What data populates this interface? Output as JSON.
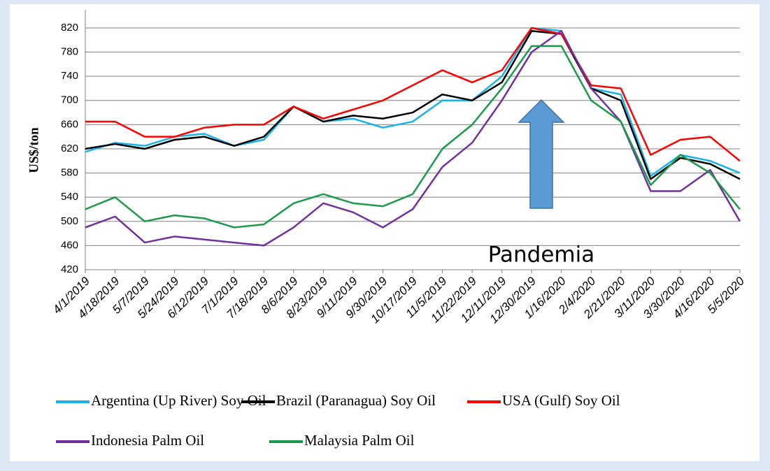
{
  "chart_data": {
    "type": "line",
    "y_label": "US$/ton",
    "annotation": "Pandemia",
    "categories": [
      "4/1/2019",
      "4/18/2019",
      "5/7/2019",
      "5/24/2019",
      "6/12/2019",
      "7/1/2019",
      "7/18/2019",
      "8/6/2019",
      "8/23/2019",
      "9/11/2019",
      "9/30/2019",
      "10/17/2019",
      "11/5/2019",
      "11/22/2019",
      "12/11/2019",
      "12/30/2019",
      "1/16/2020",
      "2/4/2020",
      "2/21/2020",
      "3/11/2020",
      "3/30/2020",
      "4/16/2020",
      "5/5/2020"
    ],
    "series": [
      {
        "name": "Argentina (Up River) Soy Oil",
        "color": "#1ab2ea",
        "values": [
          615,
          630,
          625,
          640,
          645,
          625,
          635,
          690,
          665,
          670,
          655,
          665,
          700,
          700,
          740,
          820,
          815,
          720,
          710,
          575,
          610,
          600,
          580
        ]
      },
      {
        "name": "Brazil (Paranagua) Soy Oil",
        "color": "#000000",
        "values": [
          620,
          628,
          620,
          635,
          640,
          625,
          640,
          690,
          665,
          675,
          670,
          680,
          710,
          700,
          730,
          815,
          810,
          720,
          700,
          570,
          605,
          595,
          570
        ]
      },
      {
        "name": "USA (Gulf) Soy Oil",
        "color": "#ff0000",
        "values": [
          665,
          665,
          640,
          640,
          655,
          660,
          660,
          690,
          670,
          685,
          700,
          725,
          750,
          730,
          750,
          820,
          810,
          725,
          720,
          610,
          635,
          640,
          600
        ]
      },
      {
        "name": "Indonesia Palm Oil",
        "color": "#7030a0",
        "values": [
          490,
          508,
          465,
          475,
          470,
          465,
          460,
          490,
          530,
          515,
          490,
          520,
          590,
          630,
          700,
          780,
          815,
          720,
          665,
          550,
          550,
          585,
          500
        ]
      },
      {
        "name": "Malaysia Palm Oil",
        "color": "#1a9a4a",
        "values": [
          520,
          540,
          500,
          510,
          505,
          490,
          495,
          530,
          545,
          530,
          525,
          545,
          620,
          660,
          720,
          790,
          790,
          700,
          665,
          560,
          610,
          580,
          520
        ]
      }
    ],
    "ylim": [
      420,
      850
    ],
    "yticks": [
      420,
      460,
      500,
      540,
      580,
      620,
      660,
      700,
      740,
      780,
      820
    ],
    "grid": true
  }
}
